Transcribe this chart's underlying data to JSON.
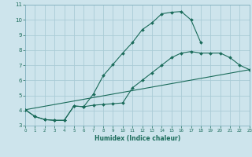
{
  "bg_color": "#cde4ec",
  "line_color": "#1a6b5a",
  "grid_color": "#aacbd6",
  "xlabel": "Humidex (Indice chaleur)",
  "ylim": [
    3,
    11
  ],
  "xlim": [
    0,
    23
  ],
  "yticks": [
    3,
    4,
    5,
    6,
    7,
    8,
    9,
    10,
    11
  ],
  "xticks": [
    0,
    1,
    2,
    3,
    4,
    5,
    6,
    7,
    8,
    9,
    10,
    11,
    12,
    13,
    14,
    15,
    16,
    17,
    18,
    19,
    20,
    21,
    22,
    23
  ],
  "line1_x": [
    0,
    1,
    2,
    3,
    4,
    5,
    6,
    7,
    8,
    9,
    10,
    11,
    12,
    13,
    14,
    15,
    16,
    17,
    18
  ],
  "line1_y": [
    4.05,
    3.6,
    3.4,
    3.35,
    3.35,
    4.3,
    4.25,
    5.1,
    6.3,
    7.05,
    7.8,
    8.5,
    9.35,
    9.8,
    10.4,
    10.5,
    10.55,
    10.0,
    8.5
  ],
  "line2_x": [
    0,
    1,
    2,
    3,
    4,
    5,
    6,
    7,
    8,
    9,
    10,
    11,
    12,
    13,
    14,
    15,
    16,
    17,
    18,
    19,
    20,
    21,
    22,
    23
  ],
  "line2_y": [
    4.05,
    3.6,
    3.4,
    3.35,
    3.35,
    4.3,
    4.25,
    4.35,
    4.4,
    4.45,
    4.5,
    5.5,
    6.0,
    6.5,
    7.0,
    7.5,
    7.8,
    7.9,
    7.8,
    7.8,
    7.8,
    7.5,
    7.0,
    6.7
  ],
  "line3_x": [
    0,
    23
  ],
  "line3_y": [
    4.05,
    6.7
  ]
}
